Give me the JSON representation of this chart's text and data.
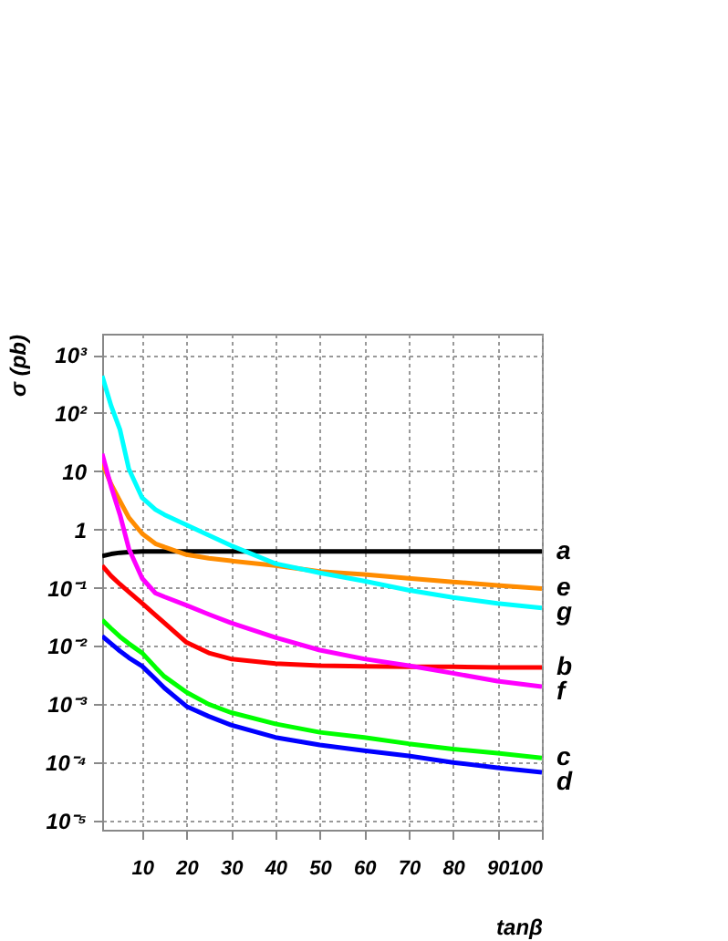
{
  "chart_data": {
    "type": "line",
    "xlabel": "tanβ",
    "ylabel": "σ (pb)",
    "log": "y",
    "grid": true,
    "legend": false,
    "marker": "none",
    "line_style": "solid",
    "x": [
      1,
      3,
      5,
      7,
      10,
      13,
      15,
      20,
      25,
      30,
      40,
      50,
      60,
      70,
      80,
      90,
      100
    ],
    "xlim": [
      1,
      100
    ],
    "xticks": [
      10,
      20,
      30,
      40,
      50,
      60,
      70,
      80,
      90,
      100
    ],
    "ylim": [
      7e-06,
      2300
    ],
    "yticks": [
      {
        "value": 1e-05,
        "label": "10⁻⁵"
      },
      {
        "value": 0.0001,
        "label": "10⁻⁴"
      },
      {
        "value": 0.001,
        "label": "10⁻³"
      },
      {
        "value": 0.01,
        "label": "10⁻²"
      },
      {
        "value": 0.1,
        "label": "10⁻¹"
      },
      1,
      10,
      {
        "value": 100,
        "label": "10²"
      },
      {
        "value": 1000,
        "label": "10³"
      }
    ],
    "series": [
      {
        "name": "a",
        "color": "#000000",
        "values": [
          0.35,
          0.38,
          0.4,
          0.41,
          0.42,
          0.42,
          0.42,
          0.42,
          0.42,
          0.42,
          0.42,
          0.42,
          0.42,
          0.42,
          0.42,
          0.42,
          0.42
        ]
      },
      {
        "name": "e",
        "color": "#ff8c00",
        "values": [
          14,
          6,
          3.1,
          1.6,
          0.85,
          0.57,
          0.5,
          0.37,
          0.32,
          0.29,
          0.24,
          0.19,
          0.17,
          0.145,
          0.126,
          0.11,
          0.097
        ]
      },
      {
        "name": "g",
        "color": "#00ffff",
        "values": [
          436,
          134,
          52,
          11,
          3.5,
          2.2,
          1.8,
          1.2,
          0.8,
          0.53,
          0.26,
          0.18,
          0.13,
          0.091,
          0.068,
          0.054,
          0.045
        ]
      },
      {
        "name": "b",
        "color": "#ff0000",
        "values": [
          0.24,
          0.16,
          0.115,
          0.085,
          0.054,
          0.034,
          0.025,
          0.0115,
          0.0076,
          0.006,
          0.005,
          0.0046,
          0.0045,
          0.0044,
          0.0044,
          0.0043,
          0.0043
        ]
      },
      {
        "name": "f",
        "color": "#ff00ff",
        "values": [
          20,
          5.5,
          1.8,
          0.47,
          0.145,
          0.081,
          0.07,
          0.05,
          0.035,
          0.025,
          0.014,
          0.0085,
          0.006,
          0.0046,
          0.0034,
          0.0025,
          0.002
        ]
      },
      {
        "name": "c",
        "color": "#00ff00",
        "values": [
          0.028,
          0.02,
          0.0145,
          0.011,
          0.0076,
          0.0043,
          0.003,
          0.0016,
          0.001,
          0.00072,
          0.00046,
          0.00033,
          0.00027,
          0.00021,
          0.00017,
          0.000145,
          0.00012
        ]
      },
      {
        "name": "d",
        "color": "#0000ff",
        "values": [
          0.0148,
          0.011,
          0.0082,
          0.0063,
          0.0045,
          0.0027,
          0.0019,
          0.00092,
          0.00062,
          0.00044,
          0.00027,
          0.0002,
          0.00016,
          0.00013,
          0.0001,
          8.1e-05,
          6.8e-05
        ]
      }
    ]
  }
}
